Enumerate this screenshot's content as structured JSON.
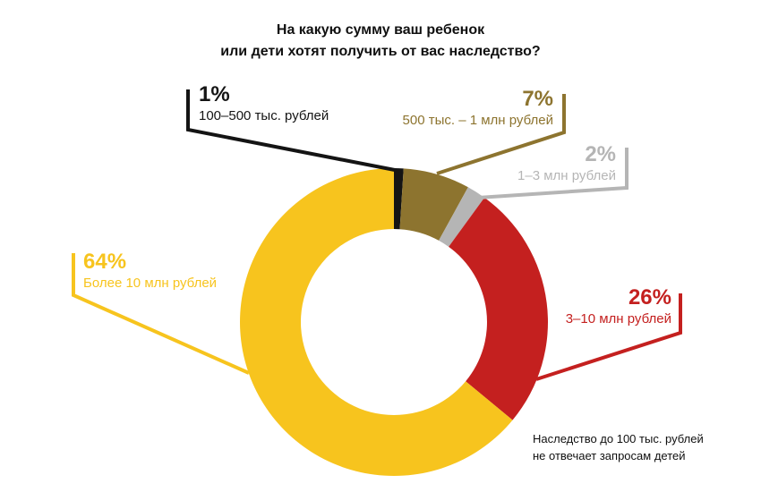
{
  "title": {
    "line1": "На какую сумму ваш ребенок",
    "line2": "или дети хотят получить от вас наследство?"
  },
  "footnote": {
    "line1": "Наследство до 100 тыс. рублей",
    "line2": "не отвечает запросам детей"
  },
  "chart_data": {
    "type": "pie",
    "subtype": "donut",
    "title": "На какую сумму ваш ребенок или дети хотят получить от вас наследство?",
    "units": "percent",
    "start_angle_deg": 0,
    "direction": "clockwise",
    "legend_position": "callout-labels",
    "slices": [
      {
        "label": "100–500 тыс. рублей",
        "value": 1,
        "pct_label": "1%",
        "color": "#141414"
      },
      {
        "label": "500 тыс. – 1 млн рублей",
        "value": 7,
        "pct_label": "7%",
        "color": "#8d742f"
      },
      {
        "label": "1–3 млн рублей",
        "value": 2,
        "pct_label": "2%",
        "color": "#b5b5b5"
      },
      {
        "label": "3–10 млн рублей",
        "value": 26,
        "pct_label": "26%",
        "color": "#c4201f"
      },
      {
        "label": "Более 10 млн рублей",
        "value": 64,
        "pct_label": "64%",
        "color": "#f7c41e"
      }
    ],
    "footnote": "Наследство до 100 тыс. рублей не отвечает запросам детей"
  }
}
